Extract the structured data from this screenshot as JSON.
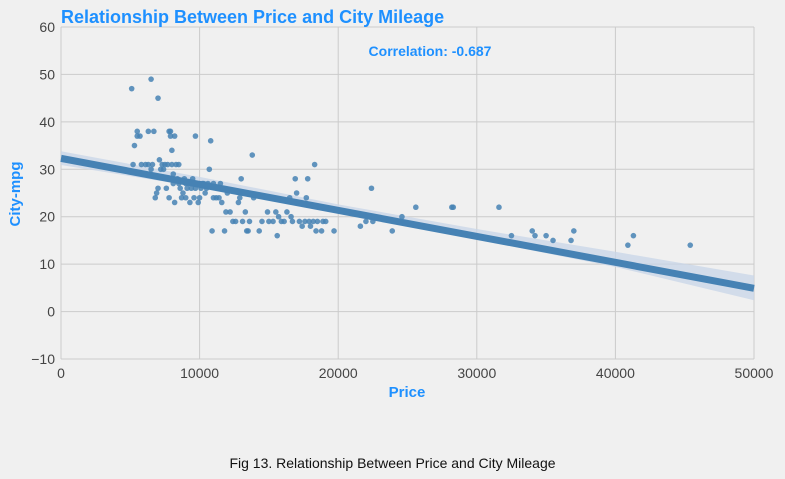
{
  "chart_data": {
    "type": "scatter",
    "title": "Relationship Between Price and City Mileage",
    "xlabel": "Price",
    "ylabel": "City-mpg",
    "xlim": [
      0,
      50000
    ],
    "ylim": [
      -10,
      60
    ],
    "x_ticks": [
      0,
      10000,
      20000,
      30000,
      40000,
      50000
    ],
    "y_ticks": [
      -10,
      0,
      10,
      20,
      30,
      40,
      50,
      60
    ],
    "x_tick_labels": [
      "0",
      "10000",
      "20000",
      "30000",
      "40000",
      "50000"
    ],
    "y_tick_labels": [
      "−10",
      "0",
      "10",
      "20",
      "30",
      "40",
      "50",
      "60"
    ],
    "grid": true,
    "annotation": "Correlation: -0.687",
    "colors": {
      "points": "#4682b4",
      "line": "#4682b4",
      "band": "#c8d6e8",
      "title": "#1e90ff",
      "background": "#f0f0f0",
      "grid": "#cbcbcb"
    },
    "regression": {
      "x": [
        0,
        50000
      ],
      "y": [
        32.3,
        4.9
      ]
    },
    "band": {
      "x": [
        0,
        10000,
        20000,
        30000,
        40000,
        50000
      ],
      "upper": [
        33.8,
        28.4,
        22.6,
        17.4,
        12.6,
        7.6
      ],
      "lower": [
        30.9,
        26.2,
        20.8,
        15.2,
        9.4,
        2.4
      ]
    },
    "points": [
      [
        5100,
        47
      ],
      [
        6500,
        49
      ],
      [
        7000,
        45
      ],
      [
        5200,
        31
      ],
      [
        5300,
        35
      ],
      [
        5500,
        38
      ],
      [
        5500,
        37
      ],
      [
        5700,
        37
      ],
      [
        5800,
        31
      ],
      [
        6100,
        31
      ],
      [
        6300,
        38
      ],
      [
        6300,
        31
      ],
      [
        6500,
        30
      ],
      [
        6600,
        31
      ],
      [
        6700,
        38
      ],
      [
        6800,
        24
      ],
      [
        6900,
        25
      ],
      [
        7000,
        26
      ],
      [
        7100,
        32
      ],
      [
        7200,
        30
      ],
      [
        7300,
        31
      ],
      [
        7400,
        30
      ],
      [
        7500,
        31
      ],
      [
        7600,
        26
      ],
      [
        7700,
        31
      ],
      [
        7800,
        38
      ],
      [
        7800,
        24
      ],
      [
        7900,
        38
      ],
      [
        7900,
        37
      ],
      [
        8000,
        34
      ],
      [
        8000,
        31
      ],
      [
        8100,
        29
      ],
      [
        8100,
        27
      ],
      [
        8200,
        37
      ],
      [
        8200,
        23
      ],
      [
        8300,
        31
      ],
      [
        8400,
        28
      ],
      [
        8500,
        27
      ],
      [
        8500,
        31
      ],
      [
        8600,
        26
      ],
      [
        8700,
        24
      ],
      [
        8800,
        25
      ],
      [
        8900,
        28
      ],
      [
        9000,
        24
      ],
      [
        9000,
        27
      ],
      [
        9100,
        26
      ],
      [
        9200,
        27
      ],
      [
        9300,
        23
      ],
      [
        9400,
        26
      ],
      [
        9500,
        28
      ],
      [
        9600,
        24
      ],
      [
        9700,
        26
      ],
      [
        9700,
        37
      ],
      [
        9800,
        27
      ],
      [
        9900,
        23
      ],
      [
        10000,
        24
      ],
      [
        10000,
        27
      ],
      [
        10100,
        26
      ],
      [
        10200,
        27
      ],
      [
        10300,
        27
      ],
      [
        10400,
        25
      ],
      [
        10500,
        26
      ],
      [
        10600,
        27
      ],
      [
        10700,
        30
      ],
      [
        10800,
        36
      ],
      [
        10900,
        17
      ],
      [
        11000,
        27
      ],
      [
        11000,
        24
      ],
      [
        11200,
        24
      ],
      [
        11400,
        24
      ],
      [
        11500,
        27
      ],
      [
        11600,
        23
      ],
      [
        11800,
        17
      ],
      [
        11900,
        21
      ],
      [
        12000,
        25
      ],
      [
        12200,
        21
      ],
      [
        12400,
        19
      ],
      [
        12600,
        19
      ],
      [
        12800,
        23
      ],
      [
        12900,
        24
      ],
      [
        13000,
        28
      ],
      [
        13100,
        19
      ],
      [
        13300,
        21
      ],
      [
        13400,
        17
      ],
      [
        13500,
        17
      ],
      [
        13600,
        19
      ],
      [
        13800,
        33
      ],
      [
        13900,
        24
      ],
      [
        14300,
        17
      ],
      [
        14500,
        19
      ],
      [
        14900,
        21
      ],
      [
        15000,
        19
      ],
      [
        15300,
        19
      ],
      [
        15500,
        21
      ],
      [
        15600,
        16
      ],
      [
        15700,
        20
      ],
      [
        15900,
        19
      ],
      [
        16100,
        19
      ],
      [
        16300,
        21
      ],
      [
        16500,
        24
      ],
      [
        16600,
        20
      ],
      [
        16700,
        19
      ],
      [
        16900,
        28
      ],
      [
        17000,
        25
      ],
      [
        17100,
        23
      ],
      [
        17200,
        19
      ],
      [
        17400,
        18
      ],
      [
        17600,
        19
      ],
      [
        17700,
        24
      ],
      [
        17800,
        28
      ],
      [
        17900,
        19
      ],
      [
        18000,
        18
      ],
      [
        18200,
        19
      ],
      [
        18300,
        31
      ],
      [
        18400,
        17
      ],
      [
        18500,
        19
      ],
      [
        18800,
        17
      ],
      [
        18900,
        19
      ],
      [
        19100,
        19
      ],
      [
        19700,
        17
      ],
      [
        21600,
        18
      ],
      [
        22000,
        19
      ],
      [
        22400,
        26
      ],
      [
        22500,
        19
      ],
      [
        23900,
        17
      ],
      [
        24600,
        20
      ],
      [
        25600,
        22
      ],
      [
        28200,
        22
      ],
      [
        28300,
        22
      ],
      [
        31600,
        22
      ],
      [
        32500,
        16
      ],
      [
        34000,
        17
      ],
      [
        34200,
        16
      ],
      [
        35000,
        16
      ],
      [
        35500,
        15
      ],
      [
        36800,
        15
      ],
      [
        37000,
        17
      ],
      [
        40900,
        14
      ],
      [
        41300,
        16
      ],
      [
        45400,
        14
      ]
    ]
  },
  "caption": "Fig 13. Relationship Between Price and City Mileage"
}
